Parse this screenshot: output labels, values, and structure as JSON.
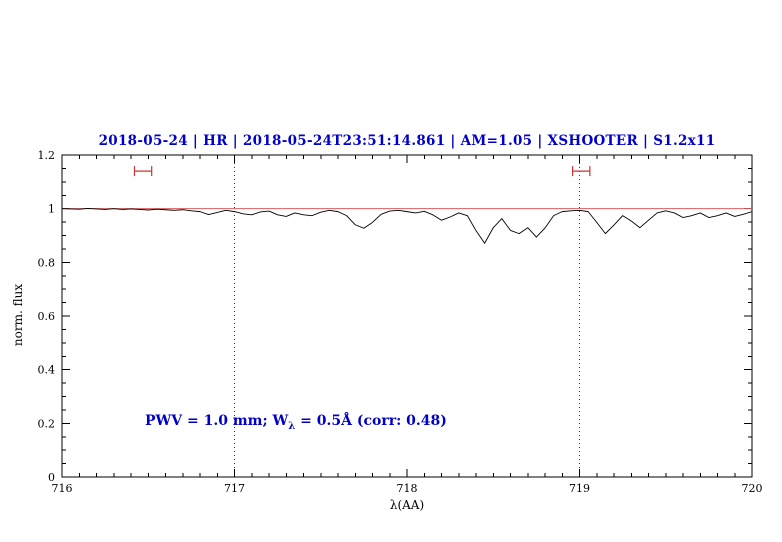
{
  "title": "2018-05-24 | HR | 2018-05-24T23:51:14.861 | AM=1.05 | XSHOOTER | S1.2x11",
  "annotation": {
    "prefix": "PWV = 1.0 mm; W",
    "sub": "λ",
    "suffix": " = 0.5Å (corr: 0.48)"
  },
  "colors": {
    "accent_blue": "#0000cd",
    "continuum_red": "#d95f5f",
    "marker_red": "#cc3333",
    "spectrum_black": "#000000",
    "reference_dotted": "#333333"
  },
  "chart_data": {
    "type": "line",
    "title": "2018-05-24 | HR | 2018-05-24T23:51:14.861 | AM=1.05 | XSHOOTER | S1.2x11",
    "xlabel": "λ(AA)",
    "ylabel": "norm. flux",
    "xlim": [
      716,
      720
    ],
    "ylim": [
      0,
      1.2
    ],
    "x_major_ticks": [
      716,
      717,
      718,
      719,
      720
    ],
    "x_tick_labels": [
      "716",
      "717",
      "718",
      "719",
      "720"
    ],
    "x_minor_step": 0.1,
    "y_major_ticks": [
      0,
      0.2,
      0.4,
      0.6,
      0.8,
      1,
      1.2
    ],
    "y_tick_labels": [
      "0",
      "0.2",
      "0.4",
      "0.6",
      "0.8",
      "1",
      "1.2"
    ],
    "y_minor_step": 0.05,
    "grid": false,
    "reference_lines_x": [
      717,
      719
    ],
    "continuum_y": 1.0,
    "range_markers": [
      {
        "x1": 716.42,
        "x2": 716.52,
        "y": 1.14
      },
      {
        "x1": 718.96,
        "x2": 719.06,
        "y": 1.14
      }
    ],
    "series": [
      {
        "name": "spectrum",
        "x": [
          716.0,
          716.05,
          716.1,
          716.15,
          716.2,
          716.25,
          716.3,
          716.35,
          716.4,
          716.45,
          716.5,
          716.55,
          716.6,
          716.65,
          716.7,
          716.75,
          716.8,
          716.85,
          716.9,
          716.95,
          717.0,
          717.05,
          717.1,
          717.15,
          717.2,
          717.25,
          717.3,
          717.35,
          717.4,
          717.45,
          717.5,
          717.55,
          717.6,
          717.65,
          717.7,
          717.75,
          717.8,
          717.85,
          717.9,
          717.95,
          718.0,
          718.05,
          718.1,
          718.15,
          718.2,
          718.25,
          718.3,
          718.35,
          718.4,
          718.45,
          718.5,
          718.55,
          718.6,
          718.65,
          718.7,
          718.75,
          718.8,
          718.85,
          718.9,
          718.95,
          719.0,
          719.05,
          719.1,
          719.15,
          719.2,
          719.25,
          719.3,
          719.35,
          719.4,
          719.45,
          719.5,
          719.55,
          719.6,
          719.65,
          719.7,
          719.75,
          719.8,
          719.85,
          719.9,
          719.95,
          720.0
        ],
        "y": [
          1.0,
          0.999,
          0.998,
          1.001,
          0.999,
          0.997,
          1.0,
          0.997,
          0.999,
          0.997,
          0.995,
          0.998,
          0.996,
          0.994,
          0.996,
          0.992,
          0.989,
          0.978,
          0.986,
          0.994,
          0.989,
          0.981,
          0.977,
          0.988,
          0.991,
          0.977,
          0.971,
          0.984,
          0.977,
          0.974,
          0.987,
          0.994,
          0.989,
          0.974,
          0.94,
          0.927,
          0.949,
          0.979,
          0.991,
          0.994,
          0.989,
          0.984,
          0.99,
          0.977,
          0.957,
          0.969,
          0.984,
          0.974,
          0.918,
          0.871,
          0.929,
          0.963,
          0.919,
          0.907,
          0.929,
          0.894,
          0.928,
          0.974,
          0.989,
          0.992,
          0.994,
          0.989,
          0.949,
          0.907,
          0.939,
          0.974,
          0.954,
          0.929,
          0.957,
          0.984,
          0.992,
          0.984,
          0.967,
          0.974,
          0.984,
          0.967,
          0.974,
          0.984,
          0.971,
          0.979,
          0.989
        ]
      }
    ]
  }
}
